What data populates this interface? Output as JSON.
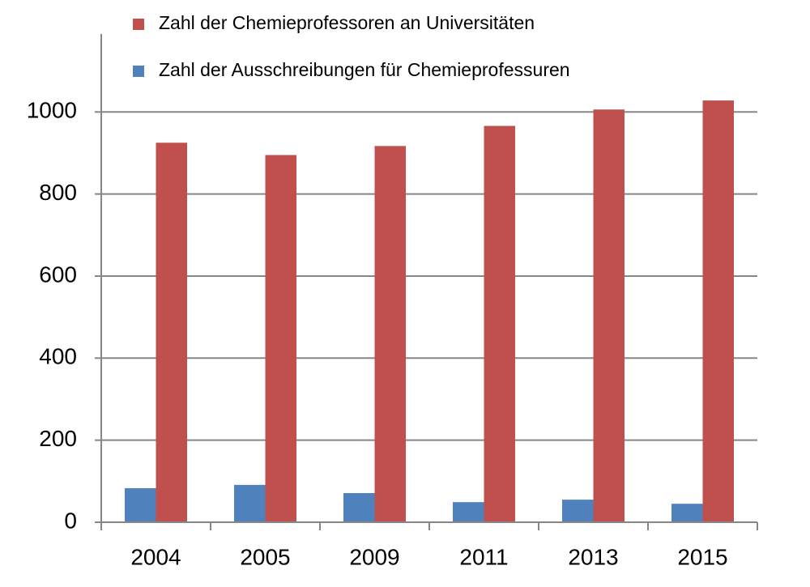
{
  "chart_data": {
    "type": "bar",
    "categories": [
      "2004",
      "2005",
      "2009",
      "2011",
      "2013",
      "2015"
    ],
    "series": [
      {
        "name": "Zahl der Ausschreibungen für Chemieprofessuren",
        "color": "#4f81bd",
        "values": [
          83,
          91,
          71,
          49,
          55,
          45
        ]
      },
      {
        "name": "Zahl der Chemieprofessoren an Universitäten",
        "color": "#c0504d",
        "values": [
          925,
          895,
          917,
          966,
          1006,
          1028
        ]
      }
    ],
    "ylim": [
      0,
      1190
    ],
    "yticks": [
      0,
      200,
      400,
      600,
      800,
      1000
    ],
    "grid": true
  }
}
